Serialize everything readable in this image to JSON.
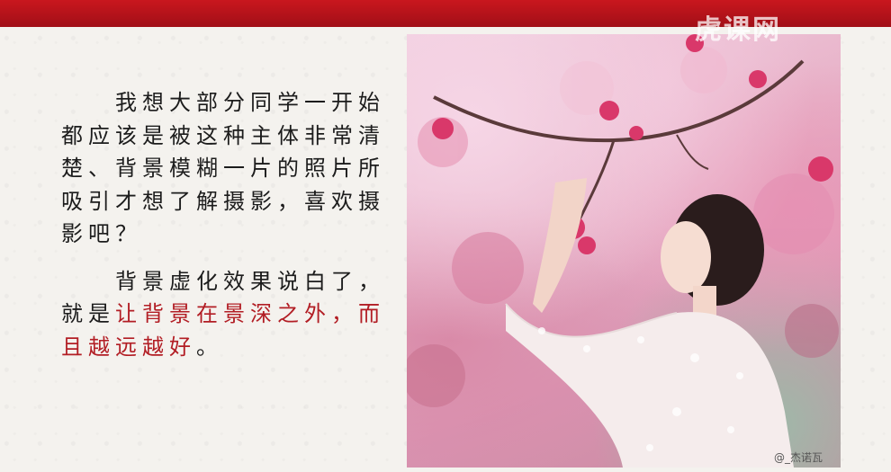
{
  "slide": {
    "paragraph1": "我想大部分同学一开始都应该是被这种主体非常清楚、背景模糊一片的照片所吸引才想了解摄影，喜欢摄影吧？",
    "paragraph2_black": "背景虚化效果说白了，就是",
    "paragraph2_red": "让背景在景深之外，而且越远越好",
    "paragraph2_end": "。"
  },
  "watermarks": {
    "top": "虎课网",
    "bottom": "@_杰诺瓦"
  },
  "colors": {
    "accent_red": "#b21d24",
    "banner_red": "#c9171e"
  }
}
